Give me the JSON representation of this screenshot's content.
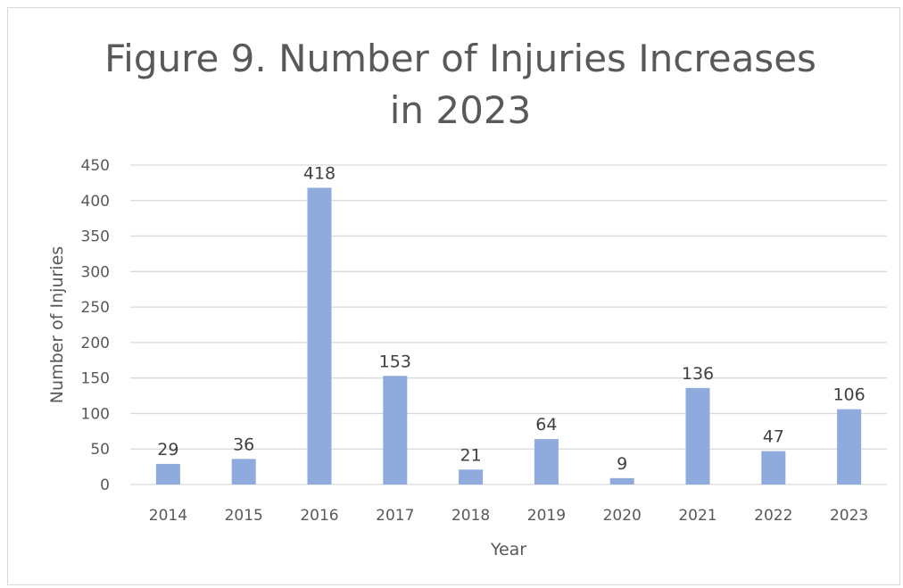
{
  "chart_data": {
    "type": "bar",
    "title_lines": [
      "Figure 9. Number of Injuries Increases",
      "in 2023"
    ],
    "xlabel": "Year",
    "ylabel": "Number of Injuries",
    "categories": [
      "2014",
      "2015",
      "2016",
      "2017",
      "2018",
      "2019",
      "2020",
      "2021",
      "2022",
      "2023"
    ],
    "values": [
      29,
      36,
      418,
      153,
      21,
      64,
      9,
      136,
      47,
      106
    ],
    "data_labels": [
      "29",
      "36",
      "418",
      "153",
      "21",
      "64",
      "9",
      "136",
      "47",
      "106"
    ],
    "ylim": [
      0,
      450
    ],
    "yticks": [
      0,
      50,
      100,
      150,
      200,
      250,
      300,
      350,
      400,
      450
    ],
    "grid": true,
    "legend": "none",
    "bar_color": "#8faadc",
    "gridline_color": "#d9d9d9",
    "text_color": "#595959"
  }
}
